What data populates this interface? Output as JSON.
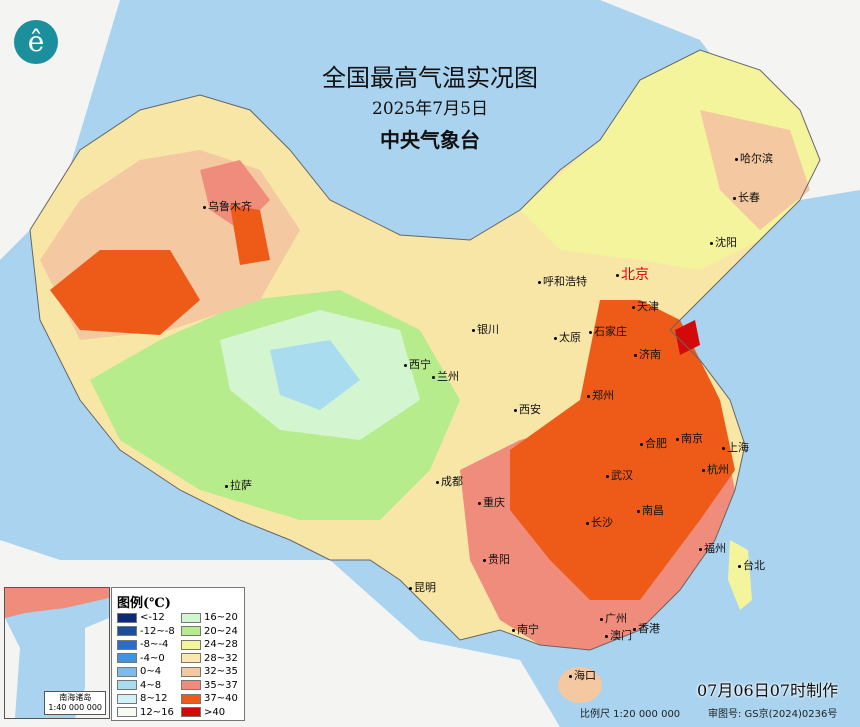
{
  "title": "全国最高气温实况图",
  "date": "2025年7月5日",
  "agency": "中央气象台",
  "logo_icon": "cma-logo-icon",
  "legend": {
    "title": "图例(℃)",
    "items": [
      {
        "label": "<-12",
        "color": "#0b2a78"
      },
      {
        "label": "-12~-8",
        "color": "#1b4f9e"
      },
      {
        "label": "-8~-4",
        "color": "#2c6cc4"
      },
      {
        "label": "-4~0",
        "color": "#4294dc"
      },
      {
        "label": "0~4",
        "color": "#7fbaee"
      },
      {
        "label": "4~8",
        "color": "#aadcf0"
      },
      {
        "label": "8~12",
        "color": "#d2f1f7"
      },
      {
        "label": "12~16",
        "color": "#f6fbf2"
      },
      {
        "label": "16~20",
        "color": "#d3f5cf"
      },
      {
        "label": "20~24",
        "color": "#b7ec8c"
      },
      {
        "label": "24~28",
        "color": "#f4f49c"
      },
      {
        "label": "28~32",
        "color": "#fbe6b4"
      },
      {
        "label": "32~35",
        "color": "#f4c8a0"
      },
      {
        "label": "35~37",
        "color": "#f08c7c"
      },
      {
        "label": "37~40",
        "color": "#ee5a18"
      },
      {
        "label": ">40",
        "color": "#d20a0a"
      }
    ]
  },
  "cities": [
    "乌鲁木齐",
    "哈尔滨",
    "长春",
    "沈阳",
    "呼和浩特",
    "北京",
    "天津",
    "银川",
    "太原",
    "石家庄",
    "济南",
    "西宁",
    "兰州",
    "郑州",
    "西安",
    "南京",
    "合肥",
    "上海",
    "杭州",
    "武汉",
    "成都",
    "拉萨",
    "重庆",
    "南昌",
    "长沙",
    "福州",
    "台北",
    "贵阳",
    "昆明",
    "南宁",
    "广州",
    "澳门",
    "香港",
    "海口"
  ],
  "inset": {
    "title": "南海诸岛",
    "scale": "1:40 000 000"
  },
  "made_time": "07月06日07时制作",
  "scale": "比例尺 1:20 000 000",
  "approval": "审图号: GS京(2024)0236号"
}
